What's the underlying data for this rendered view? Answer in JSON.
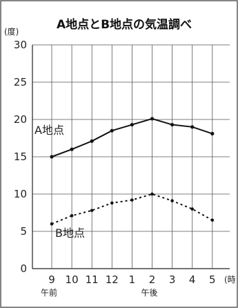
{
  "chart_data": {
    "type": "line",
    "title": "A地点とB地点の気温調べ",
    "ylabel": "(度)",
    "xunit": "(時",
    "categories": [
      "9",
      "10",
      "11",
      "12",
      "1",
      "2",
      "3",
      "4",
      "5"
    ],
    "period_labels": [
      {
        "label": "午前",
        "at": "9"
      },
      {
        "label": "午後",
        "at": "2"
      }
    ],
    "yticks": [
      0,
      5,
      10,
      15,
      20,
      25,
      30
    ],
    "ylim": [
      0,
      30
    ],
    "grid": true,
    "series": [
      {
        "name": "A地点",
        "values": [
          15,
          16,
          17.1,
          18.5,
          19.3,
          20.1,
          19.3,
          19,
          18.1
        ],
        "style": "solid"
      },
      {
        "name": "B地点",
        "values": [
          6,
          7.1,
          7.8,
          8.8,
          9.2,
          10,
          9.1,
          8,
          6.5
        ],
        "style": "dashed"
      }
    ]
  }
}
